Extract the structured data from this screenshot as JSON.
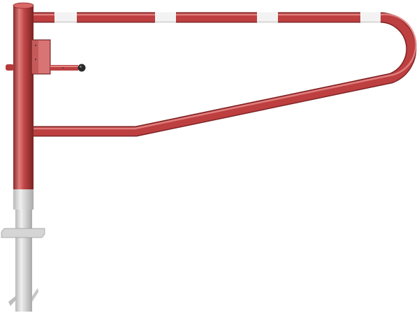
{
  "image": {
    "subject": "barrier-gate",
    "colors": {
      "tube_red": "#b93b3c",
      "tube_highlight": "#e98a88",
      "tube_shadow": "#7e2324",
      "stripe_white": "#f2f2f2",
      "post_grey": "#d9d9d9",
      "knob_black": "#222222"
    }
  }
}
